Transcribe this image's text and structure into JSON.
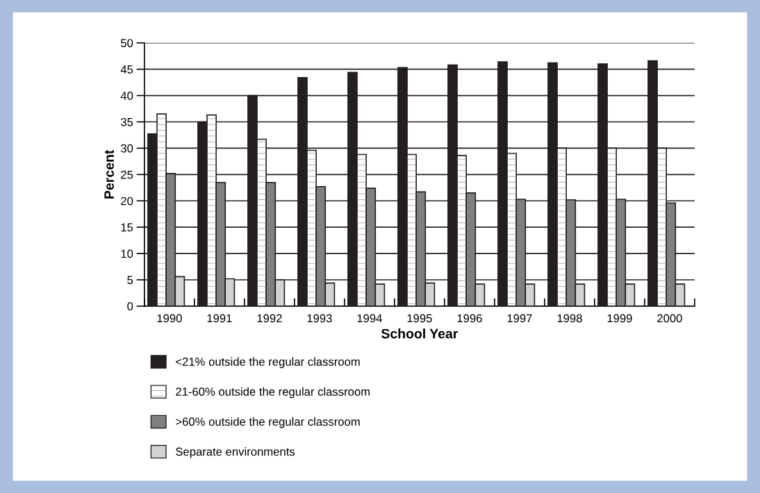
{
  "chart_data": {
    "type": "bar",
    "xlabel": "School Year",
    "ylabel": "Percent",
    "categories": [
      "1990",
      "1991",
      "1992",
      "1993",
      "1994",
      "1995",
      "1996",
      "1997",
      "1998",
      "1999",
      "2000"
    ],
    "series": [
      {
        "name": "<21% outside the regular classroom",
        "color": "#231f20",
        "values": [
          32.7,
          35.0,
          40.0,
          43.4,
          44.4,
          45.3,
          45.8,
          46.4,
          46.2,
          46.0,
          46.6
        ]
      },
      {
        "name": "21-60% outside the regular classroom",
        "color": "#ffffff",
        "values": [
          36.5,
          36.3,
          31.7,
          29.6,
          28.8,
          28.8,
          28.6,
          29.0,
          30.0,
          30.0,
          30.0
        ]
      },
      {
        "name": ">60% outside the regular classroom",
        "color": "#808080",
        "values": [
          25.2,
          23.5,
          23.5,
          22.7,
          22.4,
          21.7,
          21.5,
          20.3,
          20.2,
          20.3,
          19.6
        ]
      },
      {
        "name": "Separate environments",
        "color": "#d2d3d5",
        "values": [
          5.6,
          5.2,
          5.0,
          4.4,
          4.2,
          4.4,
          4.2,
          4.2,
          4.2,
          4.2,
          4.2
        ]
      }
    ],
    "ylim": [
      0,
      50
    ],
    "yticks": [
      0,
      5,
      10,
      15,
      20,
      25,
      30,
      35,
      40,
      45,
      50
    ],
    "grid": "y",
    "legend": "bottom left"
  }
}
